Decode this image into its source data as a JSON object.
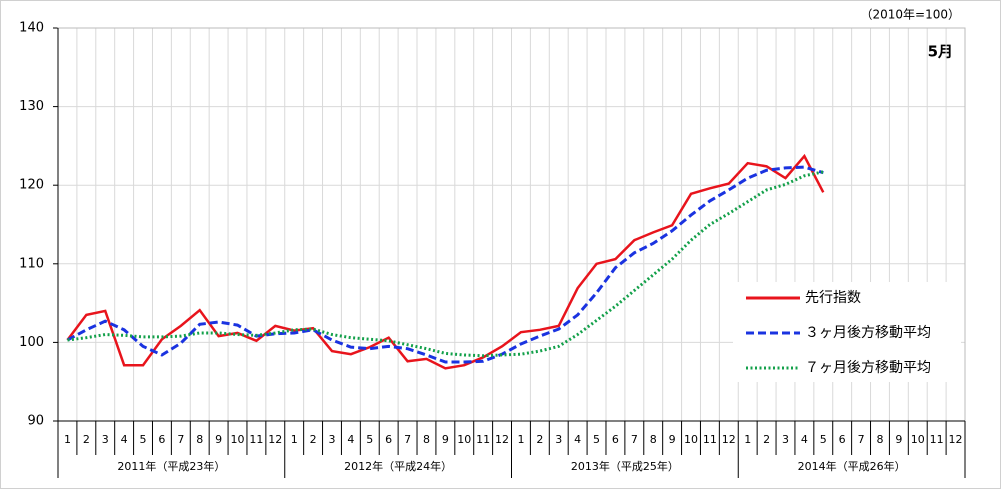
{
  "chart_data": {
    "type": "line",
    "annotation": "（2010年=100）",
    "month_label": "5月",
    "categories": [
      "1",
      "2",
      "3",
      "4",
      "5",
      "6",
      "7",
      "8",
      "9",
      "10",
      "11",
      "12",
      "1",
      "2",
      "3",
      "4",
      "5",
      "6",
      "7",
      "8",
      "9",
      "10",
      "11",
      "12",
      "1",
      "2",
      "3",
      "4",
      "5",
      "6",
      "7",
      "8",
      "9",
      "10",
      "11",
      "12",
      "1",
      "2",
      "3",
      "4",
      "5",
      "6",
      "7",
      "8",
      "9",
      "10",
      "11",
      "12"
    ],
    "year_labels": [
      "2011年（平成23年）",
      "2012年（平成24年）",
      "2013年（平成25年）",
      "2014年（平成26年）"
    ],
    "ylim": [
      90,
      140
    ],
    "yticks": [
      90,
      100,
      110,
      120,
      130,
      140
    ],
    "grid": true,
    "series": [
      {
        "name": "先行指数",
        "color": "#e8141c",
        "style": "solid",
        "values": [
          100.3,
          103.5,
          104.0,
          97.1,
          97.1,
          100.4,
          102.1,
          104.1,
          100.8,
          101.2,
          100.2,
          102.1,
          101.5,
          101.8,
          98.9,
          98.5,
          99.4,
          100.6,
          97.6,
          97.9,
          96.7,
          97.1,
          98.1,
          99.5,
          101.3,
          101.6,
          102.1,
          106.9,
          110.0,
          110.6,
          113.0,
          114.0,
          114.9,
          118.9,
          119.6,
          120.2,
          122.8,
          122.4,
          120.9,
          123.7,
          119.1,
          null,
          null,
          null,
          null,
          null,
          null,
          null
        ]
      },
      {
        "name": "３ヶ月後方移動平均",
        "color": "#1a33e0",
        "style": "dashed",
        "values": [
          100.3,
          101.6,
          102.7,
          101.6,
          99.5,
          98.4,
          99.9,
          102.3,
          102.6,
          102.2,
          100.8,
          101.1,
          101.2,
          101.6,
          100.3,
          99.4,
          99.2,
          99.5,
          99.2,
          98.4,
          97.5,
          97.5,
          97.6,
          98.5,
          99.8,
          100.8,
          101.7,
          103.5,
          106.3,
          109.5,
          111.4,
          112.6,
          114.2,
          116.2,
          118.0,
          119.4,
          120.9,
          121.9,
          122.2,
          122.3,
          121.6,
          null,
          null,
          null,
          null,
          null,
          null,
          null
        ]
      },
      {
        "name": "７ヶ月後方移動平均",
        "color": "#13a04a",
        "style": "dotted",
        "values": [
          100.3,
          100.6,
          101.0,
          100.9,
          100.7,
          100.7,
          100.8,
          101.2,
          101.2,
          101.0,
          100.9,
          101.2,
          101.6,
          101.7,
          101.0,
          100.6,
          100.4,
          100.2,
          99.7,
          99.2,
          98.6,
          98.4,
          98.3,
          98.4,
          98.5,
          98.9,
          99.5,
          101.0,
          102.8,
          104.6,
          106.6,
          108.6,
          110.6,
          113.0,
          115.0,
          116.4,
          117.9,
          119.4,
          120.1,
          121.2,
          121.7,
          null,
          null,
          null,
          null,
          null,
          null,
          null
        ]
      }
    ]
  }
}
